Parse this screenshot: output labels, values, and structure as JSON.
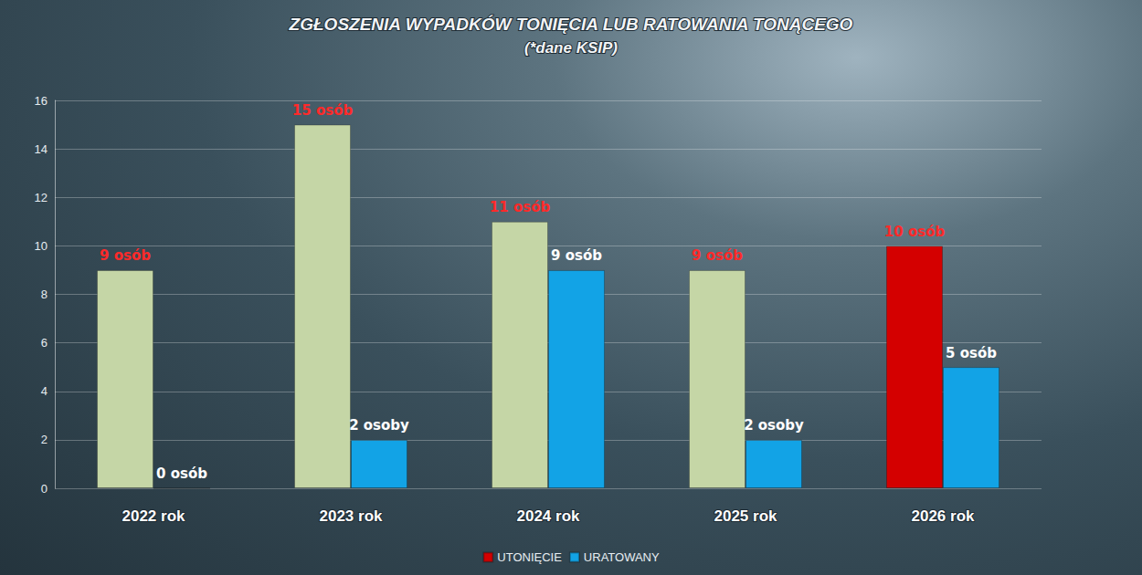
{
  "chart_data": {
    "type": "bar",
    "title": "ZGŁOSZENIA WYPADKÓW TONIĘCIA LUB RATOWANIA TONĄCEGO",
    "subtitle": "(*dane KSIP)",
    "categories": [
      "2022 rok",
      "2023 rok",
      "2024 rok",
      "2025 rok",
      "2026 rok"
    ],
    "series": [
      {
        "name": "UTONIĘCIE",
        "color": "#d40000",
        "colors": [
          "#c5d6a6",
          "#c5d6a6",
          "#c5d6a6",
          "#c5d6a6",
          "#d40000"
        ],
        "values": [
          9,
          15,
          11,
          9,
          10
        ],
        "value_labels": [
          "9 osób",
          "15 osób",
          "11 osób",
          "9 osób",
          "10 osób"
        ]
      },
      {
        "name": "URATOWANY",
        "color": "#12a3e6",
        "values": [
          0,
          2,
          9,
          2,
          5
        ],
        "value_labels": [
          "0 osób",
          "2 osoby",
          "9 osób",
          "2 osoby",
          "5 osób"
        ]
      }
    ],
    "ylim": [
      0,
      16
    ],
    "yticks": [
      0,
      2,
      4,
      6,
      8,
      10,
      12,
      14,
      16
    ],
    "grid": true,
    "legend": "bottom",
    "data_labels": true
  }
}
